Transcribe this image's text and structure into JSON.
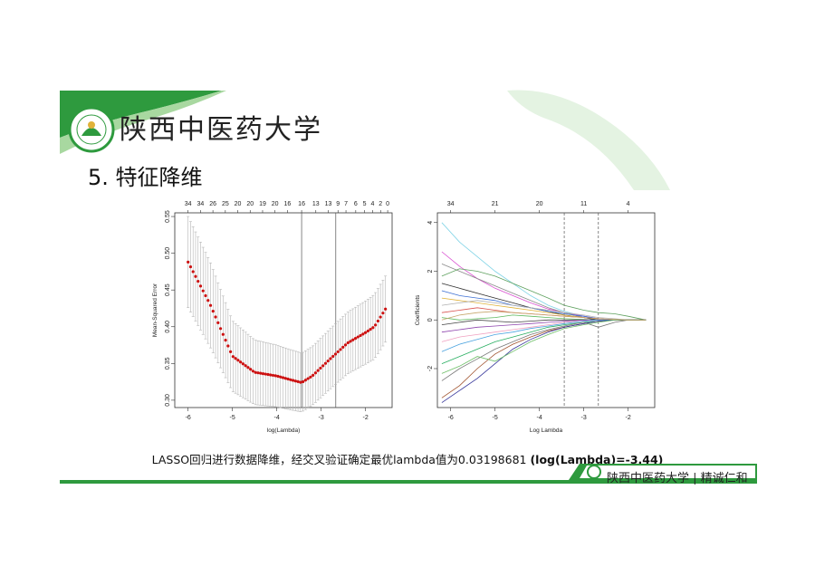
{
  "header": {
    "university_name": "陕西中医药大学",
    "slide_title": "5. 特征降维"
  },
  "caption": {
    "text": "LASSO回归进行数据降维，经交叉验证确定最优lambda值为0.03198681",
    "bold": "(log(Lambda)=-3.44)"
  },
  "footer": {
    "text": "陕西中医药大学 | 精诚仁和"
  },
  "colors": {
    "brand_green": "#2e9a3e",
    "light_green": "#e4f3e2",
    "cv_point": "#cc1111"
  },
  "chart_data": [
    {
      "type": "scatter",
      "title": "",
      "xlabel": "log(Lambda)",
      "ylabel": "Mean-Squared Error",
      "xlim": [
        -6.3,
        -1.4
      ],
      "ylim": [
        0.29,
        0.555
      ],
      "xticks": [
        -6,
        -5,
        -4,
        -3,
        -2
      ],
      "yticks": [
        0.3,
        0.35,
        0.4,
        0.45,
        0.5,
        0.55
      ],
      "top_axis_ticks": [
        {
          "x": -6.0,
          "label": "34"
        },
        {
          "x": -5.72,
          "label": "34"
        },
        {
          "x": -5.44,
          "label": "26"
        },
        {
          "x": -5.16,
          "label": "25"
        },
        {
          "x": -4.88,
          "label": "20"
        },
        {
          "x": -4.6,
          "label": "20"
        },
        {
          "x": -4.32,
          "label": "19"
        },
        {
          "x": -4.04,
          "label": "20"
        },
        {
          "x": -3.76,
          "label": "16"
        },
        {
          "x": -3.44,
          "label": "16"
        },
        {
          "x": -3.12,
          "label": "13"
        },
        {
          "x": -2.84,
          "label": "13"
        },
        {
          "x": -2.62,
          "label": "9"
        },
        {
          "x": -2.44,
          "label": "7"
        },
        {
          "x": -2.22,
          "label": "6"
        },
        {
          "x": -2.02,
          "label": "5"
        },
        {
          "x": -1.84,
          "label": "4"
        },
        {
          "x": -1.66,
          "label": "2"
        },
        {
          "x": -1.5,
          "label": "0"
        }
      ],
      "vlines": [
        -3.44,
        -2.67
      ],
      "series": [
        {
          "x": [
            -6.0,
            -5.5,
            -5.0,
            -4.5,
            -4.0,
            -3.7,
            -3.44,
            -3.2,
            -2.8,
            -2.4,
            -2.0,
            -1.8,
            -1.55
          ],
          "y": [
            0.488,
            0.43,
            0.36,
            0.338,
            0.333,
            0.328,
            0.324,
            0.333,
            0.356,
            0.378,
            0.392,
            0.4,
            0.424
          ],
          "err": [
            0.062,
            0.058,
            0.048,
            0.044,
            0.042,
            0.041,
            0.04,
            0.04,
            0.041,
            0.042,
            0.043,
            0.044,
            0.045
          ]
        }
      ]
    },
    {
      "type": "line",
      "title": "",
      "xlabel": "Log Lambda",
      "ylabel": "Coefficients",
      "xlim": [
        -6.3,
        -1.4
      ],
      "ylim": [
        -3.6,
        4.4
      ],
      "xticks": [
        -6,
        -5,
        -4,
        -3,
        -2
      ],
      "yticks": [
        -2,
        0,
        2,
        4
      ],
      "top_axis_ticks": [
        {
          "x": -6.0,
          "label": "34"
        },
        {
          "x": -5.0,
          "label": "21"
        },
        {
          "x": -4.0,
          "label": "20"
        },
        {
          "x": -3.0,
          "label": "11"
        },
        {
          "x": -2.0,
          "label": "4"
        }
      ],
      "vlines": [
        -3.44,
        -2.67
      ],
      "x": [
        -6.2,
        -5.8,
        -5.4,
        -5.0,
        -4.6,
        -4.2,
        -3.8,
        -3.44,
        -3.0,
        -2.67,
        -2.3,
        -2.0,
        -1.6
      ],
      "series": [
        {
          "color": "#7fd3e6",
          "values": [
            4.0,
            3.2,
            2.6,
            2.0,
            1.5,
            1.0,
            0.6,
            0.35,
            0.15,
            0.05,
            0,
            0,
            0
          ]
        },
        {
          "color": "#d94fd1",
          "values": [
            2.8,
            2.2,
            1.7,
            1.3,
            1.0,
            0.7,
            0.45,
            0.3,
            0.15,
            0.05,
            0,
            0,
            0
          ]
        },
        {
          "color": "#8a8a8a",
          "values": [
            2.3,
            2.0,
            1.7,
            1.4,
            1.1,
            0.8,
            0.5,
            0.3,
            0.1,
            0,
            0,
            0,
            0
          ]
        },
        {
          "color": "#5fa15f",
          "values": [
            1.8,
            2.1,
            2.0,
            1.8,
            1.5,
            1.2,
            0.9,
            0.6,
            0.4,
            0.3,
            0.25,
            0.15,
            0
          ]
        },
        {
          "color": "#2f2f2f",
          "values": [
            1.5,
            1.3,
            1.1,
            0.9,
            0.7,
            0.5,
            0.35,
            0.2,
            0.1,
            0,
            0,
            0,
            0
          ]
        },
        {
          "color": "#3c6fd3",
          "values": [
            1.2,
            1.0,
            0.9,
            0.8,
            0.6,
            0.5,
            0.35,
            0.25,
            0.15,
            0.05,
            0,
            0,
            0
          ]
        },
        {
          "color": "#e0b23a",
          "values": [
            0.9,
            0.8,
            0.7,
            0.6,
            0.5,
            0.4,
            0.3,
            0.2,
            0.1,
            0.05,
            0,
            0,
            0
          ]
        },
        {
          "color": "#b0b0b0",
          "values": [
            0.6,
            0.7,
            0.8,
            0.7,
            0.6,
            0.5,
            0.4,
            0.3,
            0.2,
            0.1,
            0.05,
            0,
            0
          ]
        },
        {
          "color": "#d9534f",
          "values": [
            0.3,
            0.4,
            0.5,
            0.4,
            0.3,
            0.25,
            0.2,
            0.15,
            0.1,
            0.05,
            0,
            0,
            0
          ]
        },
        {
          "color": "#5cb85c",
          "values": [
            0.1,
            0.0,
            0.05,
            0.1,
            0.2,
            0.15,
            0.1,
            0.05,
            0.02,
            0,
            0,
            0,
            0
          ]
        },
        {
          "color": "#444444",
          "values": [
            -0.2,
            -0.1,
            0.0,
            -0.05,
            -0.1,
            -0.05,
            0.0,
            0.0,
            0.0,
            0,
            0,
            0,
            0
          ]
        },
        {
          "color": "#8e44ad",
          "values": [
            -0.5,
            -0.4,
            -0.3,
            -0.25,
            -0.2,
            -0.15,
            -0.1,
            -0.05,
            0,
            0,
            0,
            0,
            0
          ]
        },
        {
          "color": "#f0a0c0",
          "values": [
            -0.9,
            -0.7,
            -0.6,
            -0.5,
            -0.4,
            -0.3,
            -0.2,
            -0.1,
            -0.05,
            0,
            0,
            0,
            0
          ]
        },
        {
          "color": "#4aa3df",
          "values": [
            -1.3,
            -1.0,
            -0.8,
            -0.6,
            -0.5,
            -0.35,
            -0.25,
            -0.15,
            -0.05,
            0,
            0,
            0,
            0
          ]
        },
        {
          "color": "#27ae60",
          "values": [
            -1.8,
            -1.5,
            -1.2,
            -0.9,
            -0.7,
            -0.5,
            -0.3,
            -0.2,
            -0.1,
            -0.05,
            0,
            0,
            0
          ]
        },
        {
          "color": "#777777",
          "values": [
            -2.5,
            -2.0,
            -1.6,
            -1.2,
            -0.9,
            -0.6,
            -0.4,
            -0.25,
            -0.1,
            -0.3,
            -0.1,
            0,
            0
          ]
        },
        {
          "color": "#a0522d",
          "values": [
            -3.2,
            -2.7,
            -2.0,
            -1.4,
            -1.0,
            -0.7,
            -0.45,
            -0.3,
            -0.15,
            -0.05,
            0,
            0,
            0
          ]
        },
        {
          "color": "#333399",
          "values": [
            -3.4,
            -2.9,
            -2.4,
            -1.8,
            -1.2,
            -0.8,
            -0.5,
            -0.3,
            -0.15,
            -0.05,
            0,
            0,
            0
          ]
        },
        {
          "color": "#6dbf67",
          "values": [
            -2.2,
            -1.9,
            -1.5,
            -1.7,
            -1.3,
            -0.9,
            -0.6,
            -0.35,
            -0.2,
            -0.1,
            0,
            0,
            0
          ]
        },
        {
          "color": "#c7a76d",
          "values": [
            0.0,
            0.2,
            0.3,
            0.35,
            0.3,
            0.25,
            0.2,
            0.15,
            0.1,
            0.05,
            0.02,
            0,
            0
          ]
        }
      ]
    }
  ]
}
